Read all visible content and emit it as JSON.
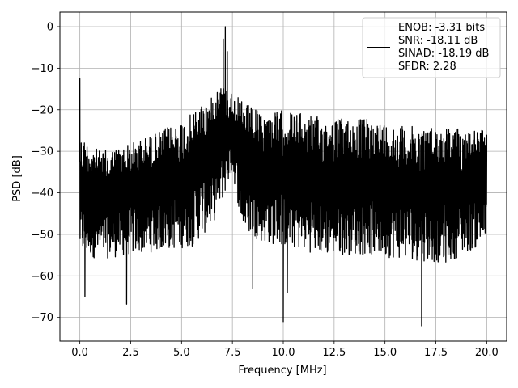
{
  "chart_data": {
    "type": "line",
    "title": "",
    "xlabel": "Frequency [MHz]",
    "ylabel": "PSD [dB]",
    "xlim": [
      -0.98,
      20.98
    ],
    "ylim": [
      -75.7,
      3.5
    ],
    "xticks": [
      0.0,
      2.5,
      5.0,
      7.5,
      10.0,
      12.5,
      15.0,
      17.5,
      20.0
    ],
    "xtick_labels": [
      "0.0",
      "2.5",
      "5.0",
      "7.5",
      "10.0",
      "12.5",
      "15.0",
      "17.5",
      "20.0"
    ],
    "yticks": [
      0,
      -10,
      -20,
      -30,
      -40,
      -50,
      -60,
      -70
    ],
    "ytick_labels": [
      "0",
      "−10",
      "−20",
      "−30",
      "−40",
      "−50",
      "−60",
      "−70"
    ],
    "grid": true,
    "legend_position": "top-right",
    "legend_entries": [
      "ENOB: -3.31 bits",
      "SNR: -18.11 dB",
      "SINAD: -18.19 dB",
      "SFDR: 2.28"
    ],
    "series": [
      {
        "color": "#000000",
        "description": "Noisy power spectral density trace, 0 to 20 MHz, peak near 7.2 MHz",
        "key_points": [
          {
            "x": 0.0,
            "y": -12.5
          },
          {
            "x": 0.25,
            "y": -65
          },
          {
            "x": 2.3,
            "y": -66.8
          },
          {
            "x": 6.9,
            "y": -16
          },
          {
            "x": 7.05,
            "y": -3
          },
          {
            "x": 7.15,
            "y": 0
          },
          {
            "x": 7.25,
            "y": -6
          },
          {
            "x": 7.5,
            "y": -21
          },
          {
            "x": 8.5,
            "y": -63
          },
          {
            "x": 10.0,
            "y": -71
          },
          {
            "x": 10.2,
            "y": -64
          },
          {
            "x": 16.8,
            "y": -72
          },
          {
            "x": 20.0,
            "y": -26
          }
        ],
        "upper_envelope": [
          {
            "x": 0.0,
            "y": -26
          },
          {
            "x": 1.0,
            "y": -30
          },
          {
            "x": 2.5,
            "y": -28
          },
          {
            "x": 4.0,
            "y": -25
          },
          {
            "x": 5.5,
            "y": -21
          },
          {
            "x": 6.0,
            "y": -18
          },
          {
            "x": 6.5,
            "y": -17
          },
          {
            "x": 6.8,
            "y": -13
          },
          {
            "x": 8.0,
            "y": -18
          },
          {
            "x": 9.0,
            "y": -21
          },
          {
            "x": 10.0,
            "y": -20
          },
          {
            "x": 12.0,
            "y": -22
          },
          {
            "x": 14.0,
            "y": -22
          },
          {
            "x": 16.0,
            "y": -24
          },
          {
            "x": 18.0,
            "y": -24
          },
          {
            "x": 20.0,
            "y": -25
          }
        ],
        "lower_envelope": [
          {
            "x": 0.0,
            "y": -55
          },
          {
            "x": 1.0,
            "y": -56
          },
          {
            "x": 2.5,
            "y": -55
          },
          {
            "x": 4.0,
            "y": -54
          },
          {
            "x": 5.5,
            "y": -53
          },
          {
            "x": 6.5,
            "y": -48
          },
          {
            "x": 7.0,
            "y": -42
          },
          {
            "x": 7.5,
            "y": -35
          },
          {
            "x": 8.0,
            "y": -49
          },
          {
            "x": 9.0,
            "y": -52
          },
          {
            "x": 10.0,
            "y": -53
          },
          {
            "x": 12.0,
            "y": -55
          },
          {
            "x": 14.0,
            "y": -55
          },
          {
            "x": 16.0,
            "y": -56
          },
          {
            "x": 18.0,
            "y": -57
          },
          {
            "x": 20.0,
            "y": -52
          }
        ]
      }
    ]
  }
}
